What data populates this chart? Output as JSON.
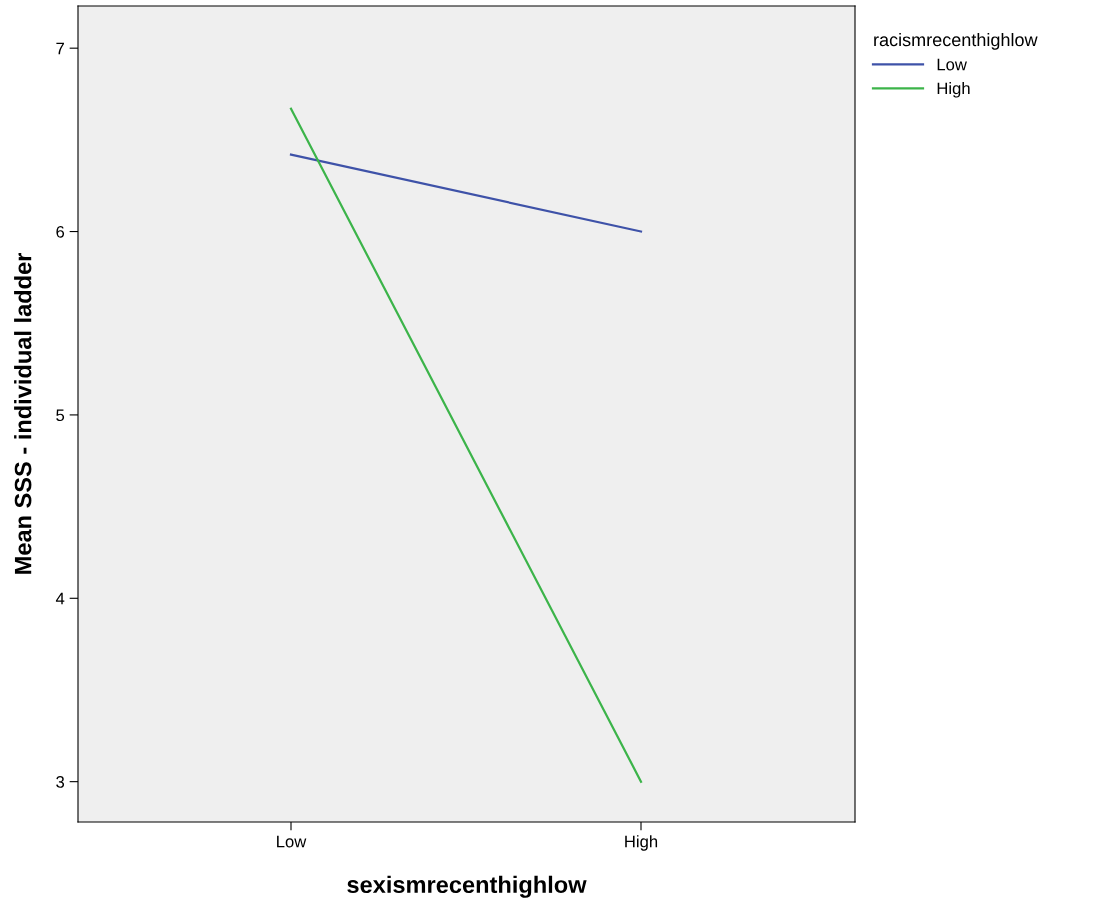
{
  "chart_data": {
    "type": "line",
    "xlabel": "sexismrecenthighlow",
    "ylabel": "Mean SSS - individual ladder",
    "legend_title": "racismrecenthighlow",
    "categories": [
      "Low",
      "High"
    ],
    "series": [
      {
        "name": "Low",
        "color": "#3e52a8",
        "values": [
          6.42,
          6.0
        ]
      },
      {
        "name": "High",
        "color": "#3cb44a",
        "values": [
          6.67,
          3.0
        ]
      }
    ],
    "ylim": [
      2.78,
      7.23
    ],
    "yticks": [
      3,
      4,
      5,
      6,
      7
    ],
    "grid": false,
    "legend": "top right",
    "marker": "none",
    "line_style": "solid"
  }
}
